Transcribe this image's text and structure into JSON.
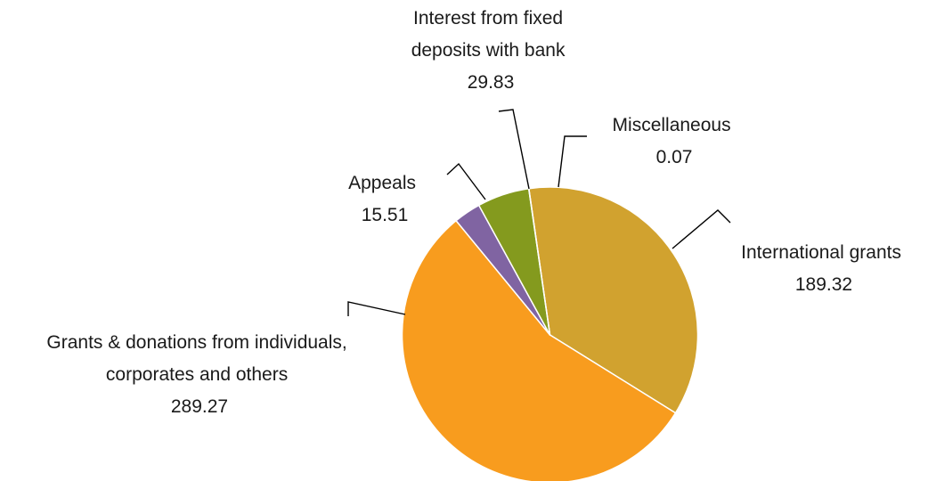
{
  "chart_data": {
    "type": "pie",
    "title": "",
    "start_angle_deg": -8.2,
    "direction": "clockwise",
    "slices": [
      {
        "label_lines": [
          "International grants"
        ],
        "value": 189.32,
        "value_text": "189.32",
        "color": "#D1A22F"
      },
      {
        "label_lines": [
          "Grants & donations from individuals,",
          "corporates and others"
        ],
        "value": 289.27,
        "value_text": "289.27",
        "color": "#F89C1E"
      },
      {
        "label_lines": [
          "Appeals"
        ],
        "value": 15.51,
        "value_text": "15.51",
        "color": "#8064A2"
      },
      {
        "label_lines": [
          "Interest from fixed",
          "deposits with bank"
        ],
        "value": 29.83,
        "value_text": "29.83",
        "color": "#849A1E"
      },
      {
        "label_lines": [
          "Miscellaneous"
        ],
        "value": 0.07,
        "value_text": "0.07",
        "color": "#F03CD2"
      }
    ]
  }
}
